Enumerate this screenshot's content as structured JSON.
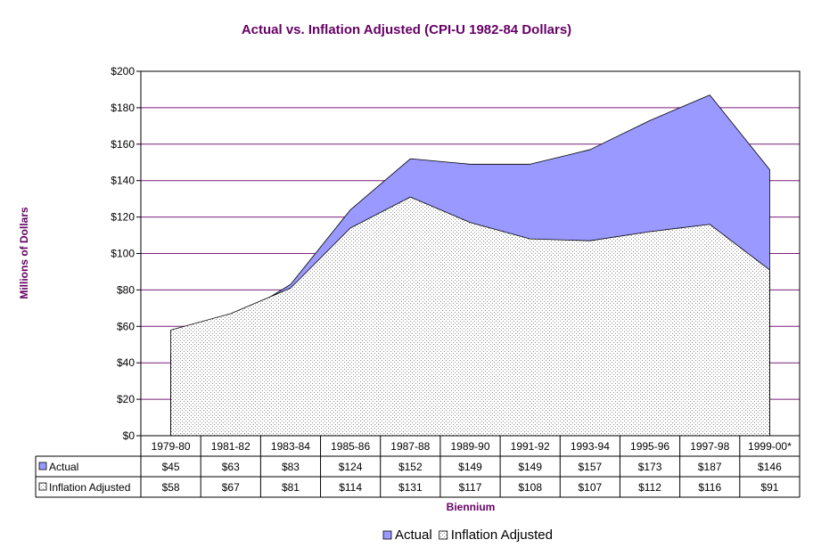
{
  "chart_data": {
    "type": "area",
    "title": "Actual vs. Inflation Adjusted (CPI-U 1982-84 Dollars)",
    "xlabel": "Biennium",
    "ylabel": "Millions of Dollars",
    "categories": [
      "1979-80",
      "1981-82",
      "1983-84",
      "1985-86",
      "1987-88",
      "1989-90",
      "1991-92",
      "1993-94",
      "1995-96",
      "1997-98",
      "1999-00*"
    ],
    "y_ticks": [
      "$0",
      "$20",
      "$40",
      "$60",
      "$80",
      "$100",
      "$120",
      "$140",
      "$160",
      "$180",
      "$200"
    ],
    "ylim": [
      0,
      200
    ],
    "grid": true,
    "legend_position": "bottom",
    "series": [
      {
        "name": "Actual",
        "values": [
          45,
          63,
          83,
          124,
          152,
          149,
          149,
          157,
          173,
          187,
          146
        ],
        "labels": [
          "$45",
          "$63",
          "$83",
          "$124",
          "$152",
          "$149",
          "$149",
          "$157",
          "$173",
          "$187",
          "$146"
        ],
        "color": "#9999ff"
      },
      {
        "name": "Inflation Adjusted",
        "values": [
          58,
          67,
          81,
          114,
          131,
          117,
          108,
          107,
          112,
          116,
          91
        ],
        "labels": [
          "$58",
          "$67",
          "$81",
          "$114",
          "$131",
          "$117",
          "$108",
          "$107",
          "$112",
          "$116",
          "$91"
        ],
        "color": "#ffffff"
      }
    ]
  }
}
